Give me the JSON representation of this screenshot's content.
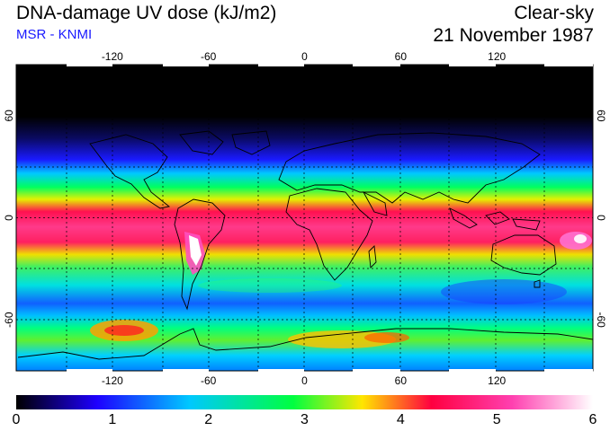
{
  "header": {
    "title": "DNA-damage UV dose (kJ/m2)",
    "subtitle": "MSR - KNMI",
    "condition": "Clear-sky",
    "date": "21 November 1987"
  },
  "colors": {
    "subtitle": "#1a1aff",
    "frame": "#000000",
    "grid": "#000000"
  },
  "map": {
    "projection": "equirectangular",
    "lon_range": [
      -180,
      180
    ],
    "lat_range": [
      -90,
      90
    ],
    "lon_ticks": [
      "-120",
      "-60",
      "0",
      "60",
      "120"
    ],
    "lat_ticks": [
      "60",
      "0",
      "-60"
    ],
    "lon_values": [
      -120,
      -60,
      0,
      60,
      120
    ],
    "lat_values": [
      60,
      0,
      -60
    ],
    "grid": "dashed"
  },
  "colorbar": {
    "labels": [
      "0",
      "1",
      "2",
      "3",
      "4",
      "5",
      "6"
    ],
    "min": 0,
    "max": 6,
    "colormap": [
      "#000000",
      "#1e00ff",
      "#00c8ff",
      "#00ff40",
      "#ffe600",
      "#ff0040",
      "#ff40b0",
      "#ffffff"
    ]
  }
}
